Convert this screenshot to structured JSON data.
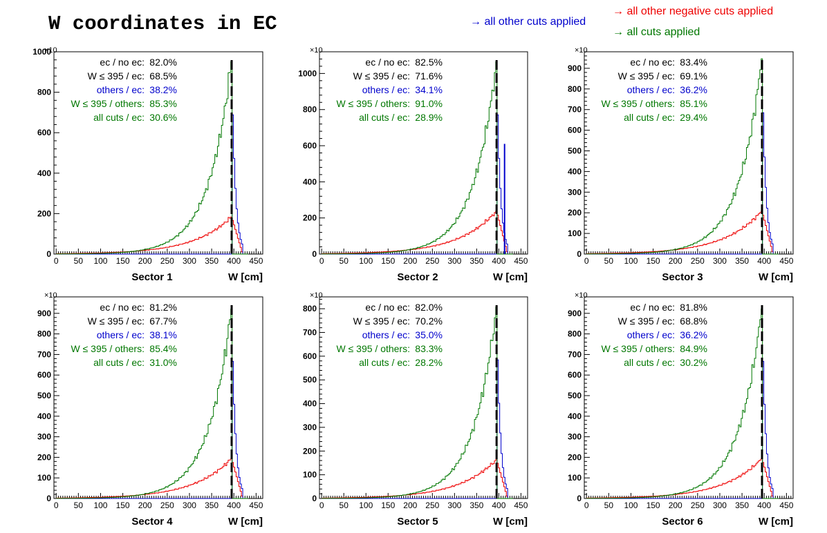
{
  "title": "W coordinates in EC",
  "legend": {
    "others": {
      "label": "→ all other cuts applied",
      "color": "#0000cc"
    },
    "negative": {
      "label": "→ all other negative cuts applied",
      "color": "#ee0000"
    },
    "all": {
      "label": "→ all cuts applied",
      "color": "#007700"
    }
  },
  "chart_data": [
    {
      "type": "histogram",
      "sector_label": "Sector 1",
      "xlabel": "W [cm]",
      "xlim": [
        -5,
        465
      ],
      "ylim": [
        0,
        1000
      ],
      "xticks": [
        0,
        50,
        100,
        150,
        200,
        250,
        300,
        350,
        400,
        450
      ],
      "yticks": [
        0,
        200,
        400,
        600,
        800,
        1000
      ],
      "peak_total": 960,
      "peak_neg": 185,
      "blue_spike": null,
      "cut_line_x": 395,
      "stats": [
        [
          "ec / no ec:",
          "82.0%"
        ],
        [
          "W ≤ 395 / ec:",
          "68.5%"
        ],
        [
          "others / ec:",
          "38.2%"
        ],
        [
          "W ≤ 395 / others:",
          "85.3%"
        ],
        [
          "all cuts / ec:",
          "30.6%"
        ]
      ]
    },
    {
      "type": "histogram",
      "sector_label": "Sector 2",
      "xlabel": "W [cm]",
      "xlim": [
        -5,
        465
      ],
      "ylim": [
        0,
        1120
      ],
      "xticks": [
        0,
        50,
        100,
        150,
        200,
        250,
        300,
        350,
        400,
        450
      ],
      "yticks": [
        0,
        200,
        400,
        600,
        800,
        1000
      ],
      "peak_total": 1075,
      "peak_neg": 240,
      "blue_spike": 610,
      "cut_line_x": 395,
      "stats": [
        [
          "ec / no ec:",
          "82.5%"
        ],
        [
          "W ≤ 395 / ec:",
          "71.6%"
        ],
        [
          "others / ec:",
          "34.1%"
        ],
        [
          "W ≤ 395 / others:",
          "91.0%"
        ],
        [
          "all cuts / ec:",
          "28.9%"
        ]
      ]
    },
    {
      "type": "histogram",
      "sector_label": "Sector 3",
      "xlabel": "W [cm]",
      "xlim": [
        -5,
        465
      ],
      "ylim": [
        0,
        980
      ],
      "xticks": [
        0,
        50,
        100,
        150,
        200,
        250,
        300,
        350,
        400,
        450
      ],
      "yticks": [
        0,
        100,
        200,
        300,
        400,
        500,
        600,
        700,
        800,
        900
      ],
      "peak_total": 955,
      "peak_neg": 210,
      "blue_spike": null,
      "cut_line_x": 395,
      "stats": [
        [
          "ec / no ec:",
          "83.4%"
        ],
        [
          "W ≤ 395 / ec:",
          "69.1%"
        ],
        [
          "others / ec:",
          "36.2%"
        ],
        [
          "W ≤ 395 / others:",
          "85.1%"
        ],
        [
          "all cuts / ec:",
          "29.4%"
        ]
      ]
    },
    {
      "type": "histogram",
      "sector_label": "Sector 4",
      "xlabel": "W [cm]",
      "xlim": [
        -5,
        465
      ],
      "ylim": [
        0,
        980
      ],
      "xticks": [
        0,
        50,
        100,
        150,
        200,
        250,
        300,
        350,
        400,
        450
      ],
      "yticks": [
        0,
        100,
        200,
        300,
        400,
        500,
        600,
        700,
        800,
        900
      ],
      "peak_total": 930,
      "peak_neg": 195,
      "blue_spike": null,
      "cut_line_x": 395,
      "stats": [
        [
          "ec / no ec:",
          "81.2%"
        ],
        [
          "W ≤ 395 / ec:",
          "67.7%"
        ],
        [
          "others / ec:",
          "38.1%"
        ],
        [
          "W ≤ 395 / others:",
          "85.4%"
        ],
        [
          "all cuts / ec:",
          "31.0%"
        ]
      ]
    },
    {
      "type": "histogram",
      "sector_label": "Sector 5",
      "xlabel": "W [cm]",
      "xlim": [
        -5,
        465
      ],
      "ylim": [
        0,
        850
      ],
      "xticks": [
        0,
        50,
        100,
        150,
        200,
        250,
        300,
        350,
        400,
        450
      ],
      "yticks": [
        0,
        100,
        200,
        300,
        400,
        500,
        600,
        700,
        800
      ],
      "peak_total": 815,
      "peak_neg": 165,
      "blue_spike": null,
      "cut_line_x": 395,
      "stats": [
        [
          "ec / no ec:",
          "82.0%"
        ],
        [
          "W ≤ 395 / ec:",
          "70.2%"
        ],
        [
          "others / ec:",
          "35.0%"
        ],
        [
          "W ≤ 395 / others:",
          "83.3%"
        ],
        [
          "all cuts / ec:",
          "28.2%"
        ]
      ]
    },
    {
      "type": "histogram",
      "sector_label": "Sector 6",
      "xlabel": "W [cm]",
      "xlim": [
        -5,
        465
      ],
      "ylim": [
        0,
        980
      ],
      "xticks": [
        0,
        50,
        100,
        150,
        200,
        250,
        300,
        350,
        400,
        450
      ],
      "yticks": [
        0,
        100,
        200,
        300,
        400,
        500,
        600,
        700,
        800,
        900
      ],
      "peak_total": 930,
      "peak_neg": 195,
      "blue_spike": null,
      "cut_line_x": 395,
      "stats": [
        [
          "ec / no ec:",
          "81.8%"
        ],
        [
          "W ≤ 395 / ec:",
          "68.8%"
        ],
        [
          "others / ec:",
          "36.2%"
        ],
        [
          "W ≤ 395 / others:",
          "84.9%"
        ],
        [
          "all cuts / ec:",
          "30.2%"
        ]
      ]
    }
  ]
}
